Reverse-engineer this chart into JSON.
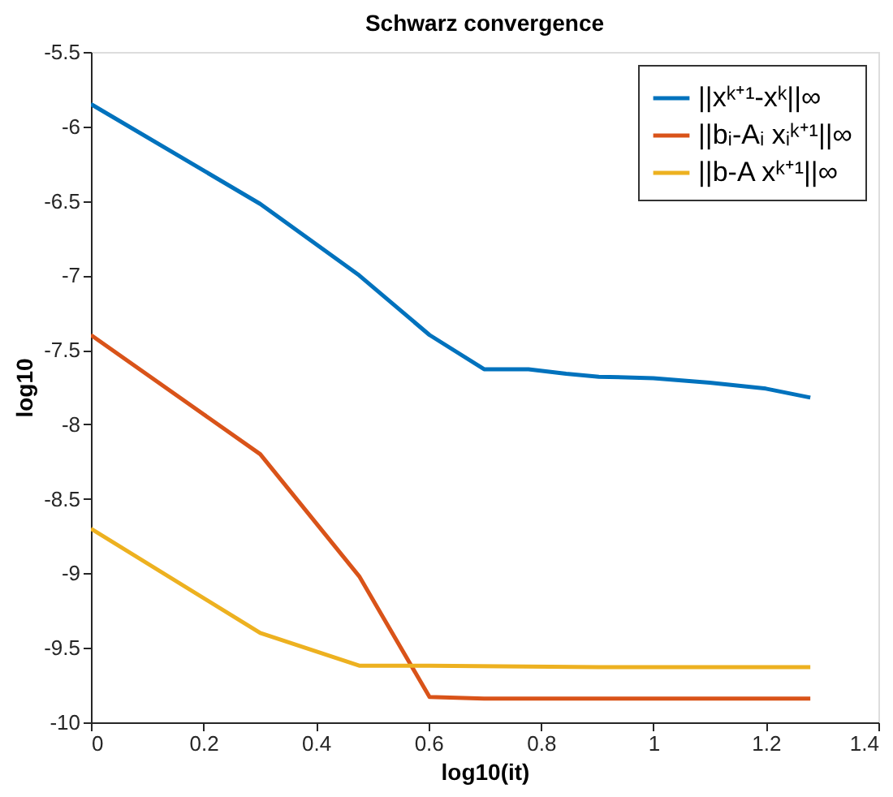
{
  "chart_data": {
    "type": "line",
    "title": "Schwarz convergence",
    "xlabel": "log10(it)",
    "ylabel": "log10",
    "xlim": [
      0,
      1.4
    ],
    "xticks": [
      0,
      0.2,
      0.4,
      0.6,
      0.8,
      1,
      1.2,
      1.4
    ],
    "ylim": [
      -10,
      -5.5
    ],
    "yticks": [
      -10,
      -9.5,
      -9,
      -8.5,
      -8,
      -7.5,
      -7,
      -6.5,
      -6,
      -5.5
    ],
    "grid": false,
    "legend": "top right",
    "marker": "none",
    "line_style": "solid",
    "series": [
      {
        "name": "||xᵏ⁺¹-xᵏ||∞",
        "color": "#0072bd",
        "x": [
          0,
          0.301,
          0.477,
          0.602,
          0.699,
          0.778,
          0.845,
          0.903,
          1.0,
          1.1,
          1.2,
          1.279
        ],
        "values": [
          -5.85,
          -6.52,
          -7.0,
          -7.4,
          -7.63,
          -7.63,
          -7.66,
          -7.68,
          -7.69,
          -7.72,
          -7.76,
          -7.82
        ]
      },
      {
        "name": "||bᵢ-Aᵢ xᵢᵏ⁺¹||∞",
        "color": "#d95319",
        "x": [
          0,
          0.301,
          0.477,
          0.602,
          0.699,
          1.279
        ],
        "values": [
          -7.4,
          -8.2,
          -9.02,
          -9.83,
          -9.84,
          -9.84
        ]
      },
      {
        "name": "||b-A xᵏ⁺¹||∞",
        "color": "#edb120",
        "x": [
          0,
          0.301,
          0.477,
          0.602,
          0.903,
          1.279
        ],
        "values": [
          -8.7,
          -9.4,
          -9.62,
          -9.62,
          -9.63,
          -9.63
        ]
      }
    ]
  }
}
